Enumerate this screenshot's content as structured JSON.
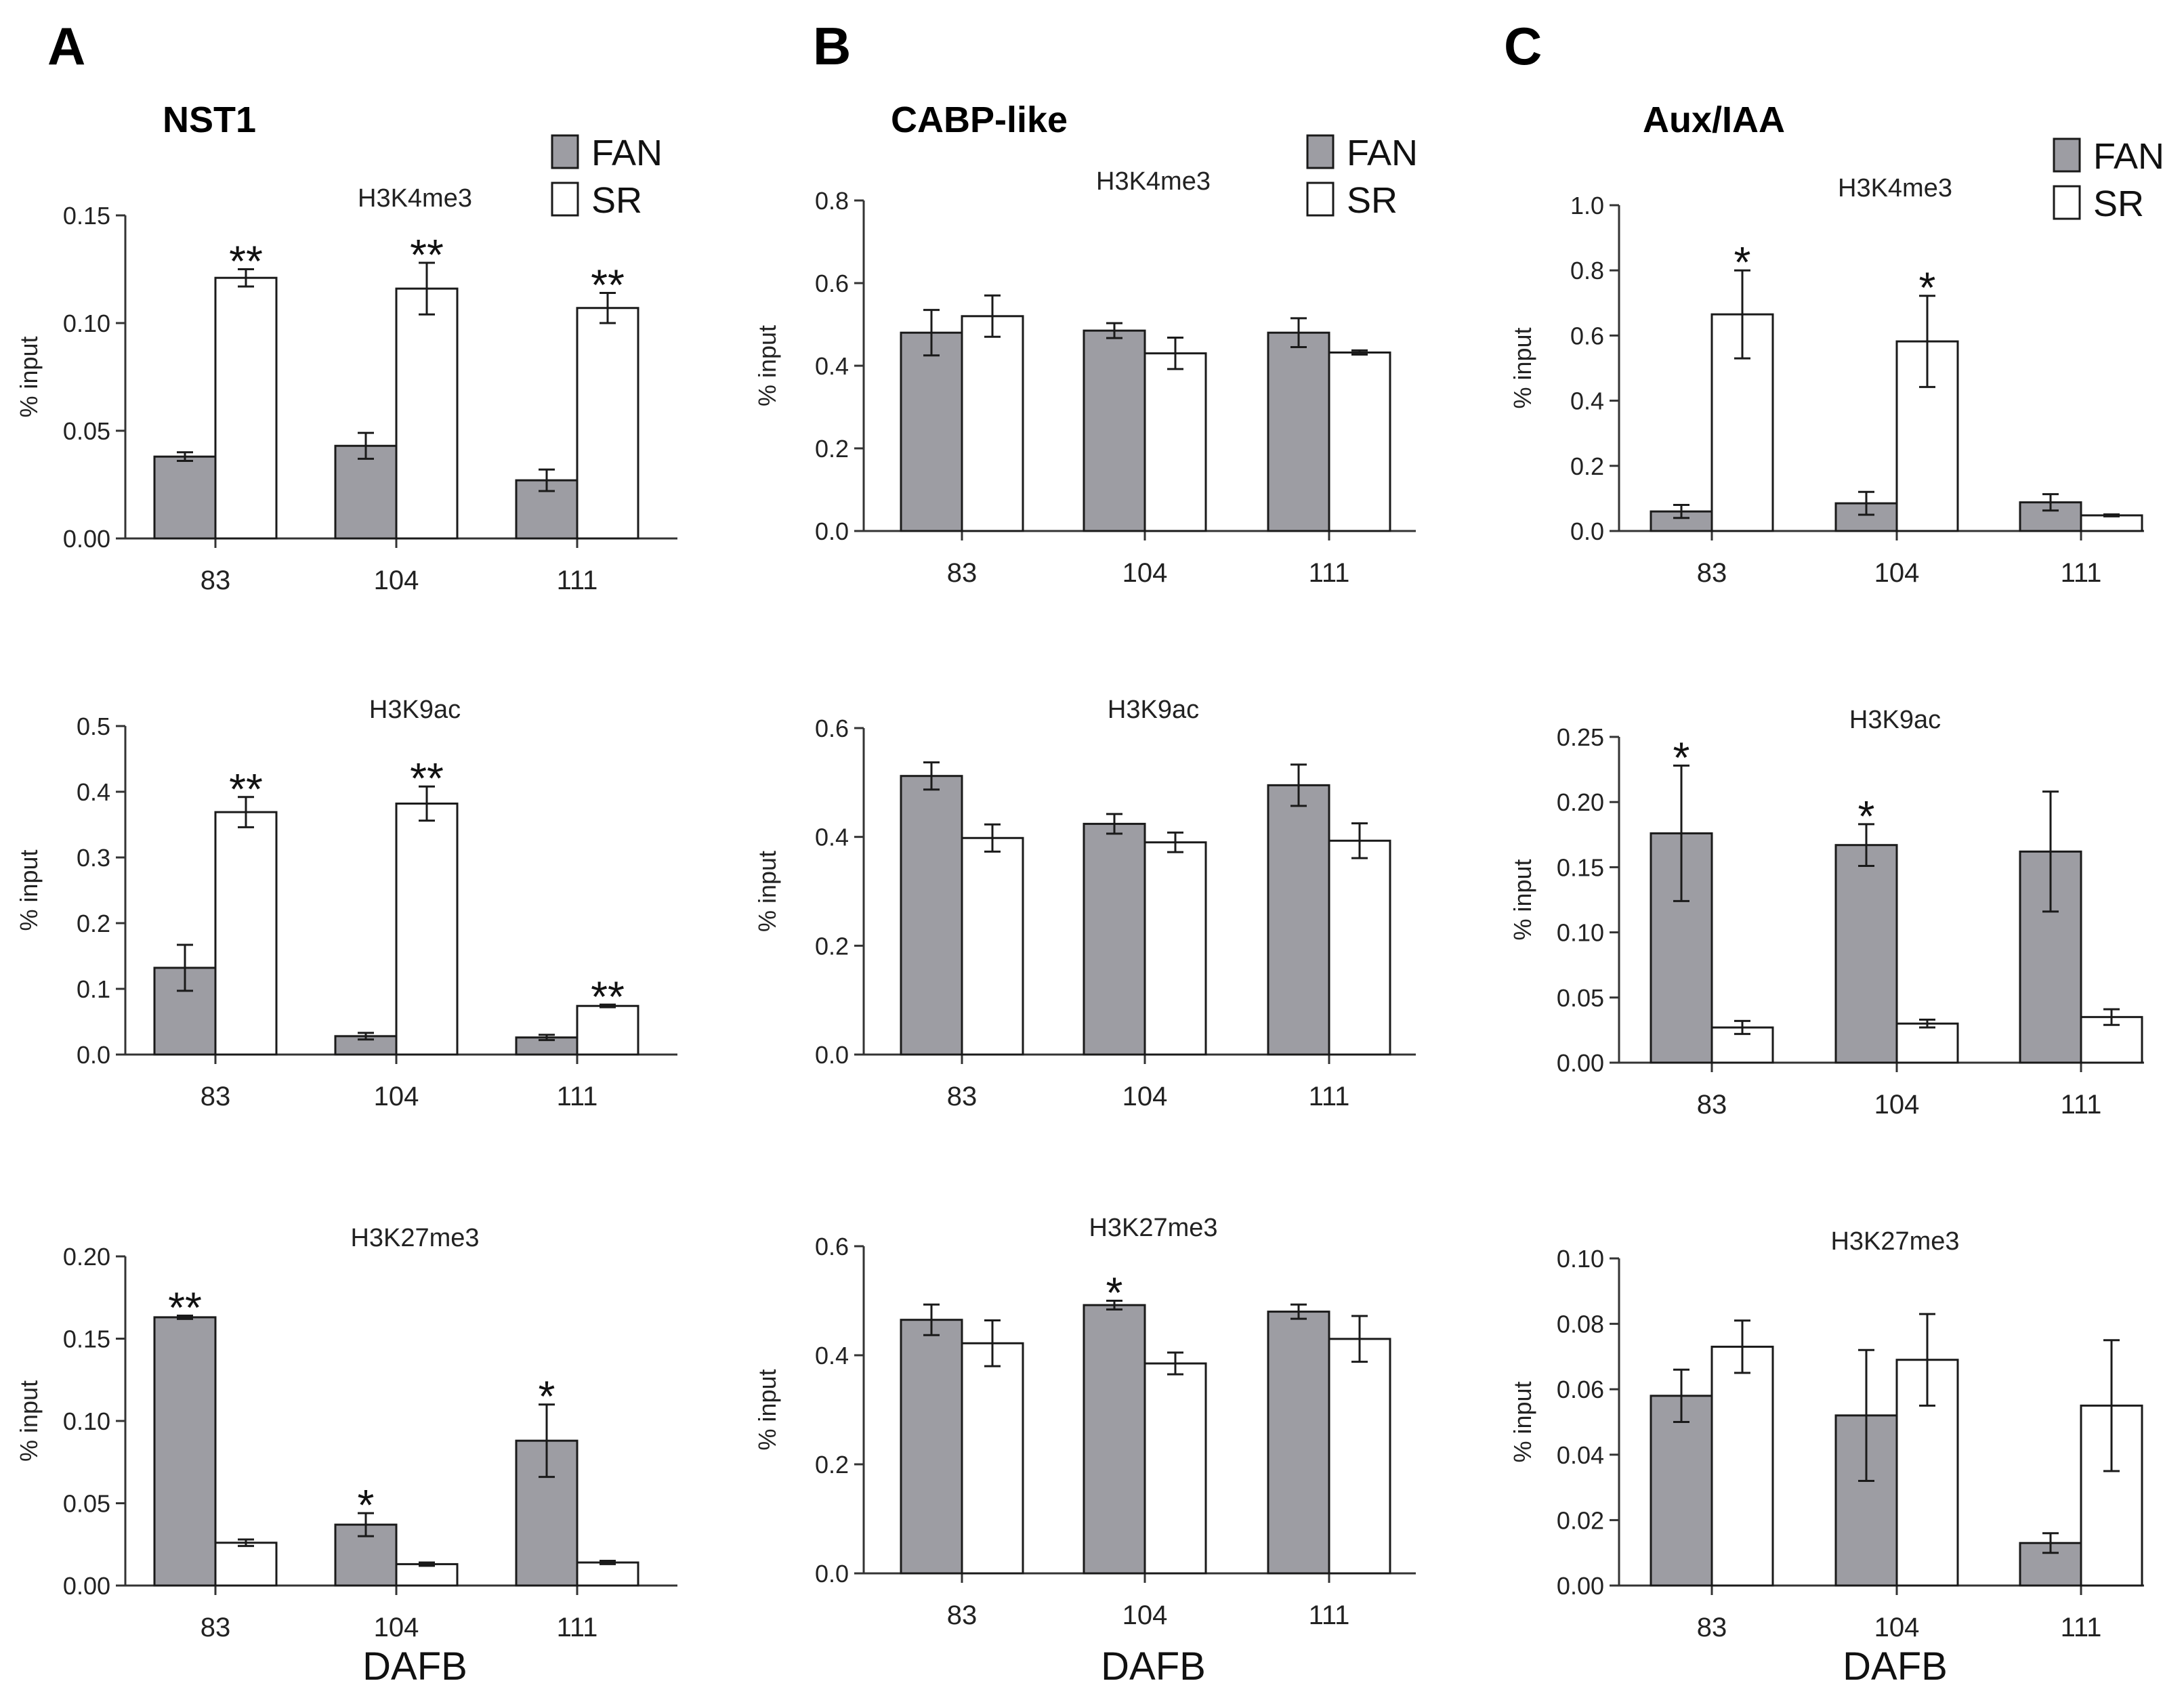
{
  "figure": {
    "xlabel": "DAFB",
    "colors": {
      "fan": "#9d9da3",
      "sr": "#ffffff",
      "stroke": "#1a1a1a"
    },
    "panels": [
      {
        "letter": "A",
        "gene": "NST1"
      },
      {
        "letter": "B",
        "gene": "CABP-like"
      },
      {
        "letter": "C",
        "gene": "Aux/IAA"
      }
    ],
    "legend": [
      "FAN",
      "SR"
    ]
  },
  "chart_data": [
    {
      "type": "bar",
      "panel": "A",
      "gene": "NST1",
      "title": "H3K4me3",
      "ylabel": "% input",
      "xlabel": "",
      "ylim": [
        0,
        0.15
      ],
      "yticks": [
        "0.00",
        "0.05",
        "0.10",
        "0.15"
      ],
      "categories": [
        "83",
        "104",
        "111"
      ],
      "series": [
        {
          "name": "FAN",
          "values": [
            0.038,
            0.043,
            0.027
          ],
          "errors": [
            0.002,
            0.006,
            0.005
          ]
        },
        {
          "name": "SR",
          "values": [
            0.121,
            0.116,
            0.107
          ],
          "errors": [
            0.004,
            0.012,
            0.007
          ]
        }
      ],
      "annotations": [
        {
          "series": "SR",
          "category": "83",
          "text": "**"
        },
        {
          "series": "SR",
          "category": "104",
          "text": "**"
        },
        {
          "series": "SR",
          "category": "111",
          "text": "**"
        }
      ]
    },
    {
      "type": "bar",
      "panel": "A",
      "gene": "NST1",
      "title": "H3K9ac",
      "ylabel": "% input",
      "xlabel": "",
      "ylim": [
        0,
        0.5
      ],
      "yticks": [
        "0.0",
        "0.1",
        "0.2",
        "0.3",
        "0.4",
        "0.5"
      ],
      "categories": [
        "83",
        "104",
        "111"
      ],
      "series": [
        {
          "name": "FAN",
          "values": [
            0.132,
            0.028,
            0.026
          ],
          "errors": [
            0.035,
            0.005,
            0.004
          ]
        },
        {
          "name": "SR",
          "values": [
            0.369,
            0.382,
            0.074
          ],
          "errors": [
            0.023,
            0.026,
            0.002
          ]
        }
      ],
      "annotations": [
        {
          "series": "SR",
          "category": "83",
          "text": "**"
        },
        {
          "series": "SR",
          "category": "104",
          "text": "**"
        },
        {
          "series": "SR",
          "category": "111",
          "text": "**"
        }
      ]
    },
    {
      "type": "bar",
      "panel": "A",
      "gene": "NST1",
      "title": "H3K27me3",
      "ylabel": "% input",
      "xlabel": "DAFB",
      "ylim": [
        0,
        0.2
      ],
      "yticks": [
        "0.00",
        "0.05",
        "0.10",
        "0.15",
        "0.20"
      ],
      "categories": [
        "83",
        "104",
        "111"
      ],
      "series": [
        {
          "name": "FAN",
          "values": [
            0.163,
            0.037,
            0.088
          ],
          "errors": [
            0.001,
            0.007,
            0.022
          ]
        },
        {
          "name": "SR",
          "values": [
            0.026,
            0.013,
            0.014
          ],
          "errors": [
            0.002,
            0.001,
            0.001
          ]
        }
      ],
      "annotations": [
        {
          "series": "FAN",
          "category": "83",
          "text": "**"
        },
        {
          "series": "FAN",
          "category": "104",
          "text": "*"
        },
        {
          "series": "FAN",
          "category": "111",
          "text": "*"
        }
      ]
    },
    {
      "type": "bar",
      "panel": "B",
      "gene": "CABP-like",
      "title": "H3K4me3",
      "ylabel": "% input",
      "xlabel": "",
      "ylim": [
        0,
        0.8
      ],
      "yticks": [
        "0.0",
        "0.2",
        "0.4",
        "0.6",
        "0.8"
      ],
      "categories": [
        "83",
        "104",
        "111"
      ],
      "series": [
        {
          "name": "FAN",
          "values": [
            0.48,
            0.485,
            0.48
          ],
          "errors": [
            0.055,
            0.018,
            0.035
          ]
        },
        {
          "name": "SR",
          "values": [
            0.52,
            0.43,
            0.432
          ],
          "errors": [
            0.05,
            0.038,
            0.005
          ]
        }
      ],
      "annotations": []
    },
    {
      "type": "bar",
      "panel": "B",
      "gene": "CABP-like",
      "title": "H3K9ac",
      "ylabel": "% input",
      "xlabel": "",
      "ylim": [
        0,
        0.6
      ],
      "yticks": [
        "0.0",
        "0.2",
        "0.4",
        "0.6"
      ],
      "categories": [
        "83",
        "104",
        "111"
      ],
      "series": [
        {
          "name": "FAN",
          "values": [
            0.512,
            0.424,
            0.495
          ],
          "errors": [
            0.025,
            0.018,
            0.038
          ]
        },
        {
          "name": "SR",
          "values": [
            0.398,
            0.39,
            0.393
          ],
          "errors": [
            0.025,
            0.018,
            0.032
          ]
        }
      ],
      "annotations": []
    },
    {
      "type": "bar",
      "panel": "B",
      "gene": "CABP-like",
      "title": "H3K27me3",
      "ylabel": "% input",
      "xlabel": "DAFB",
      "ylim": [
        0,
        0.6
      ],
      "yticks": [
        "0.0",
        "0.2",
        "0.4",
        "0.6"
      ],
      "categories": [
        "83",
        "104",
        "111"
      ],
      "series": [
        {
          "name": "FAN",
          "values": [
            0.465,
            0.492,
            0.48
          ],
          "errors": [
            0.028,
            0.008,
            0.013
          ]
        },
        {
          "name": "SR",
          "values": [
            0.422,
            0.385,
            0.43
          ],
          "errors": [
            0.042,
            0.02,
            0.042
          ]
        }
      ],
      "annotations": [
        {
          "series": "FAN",
          "category": "104",
          "text": "*"
        }
      ]
    },
    {
      "type": "bar",
      "panel": "C",
      "gene": "Aux/IAA",
      "title": "H3K4me3",
      "ylabel": "% input",
      "xlabel": "",
      "ylim": [
        0,
        1.0
      ],
      "yticks": [
        "0.0",
        "0.2",
        "0.4",
        "0.6",
        "0.8",
        "1.0"
      ],
      "categories": [
        "83",
        "104",
        "111"
      ],
      "series": [
        {
          "name": "FAN",
          "values": [
            0.06,
            0.085,
            0.088
          ],
          "errors": [
            0.02,
            0.035,
            0.025
          ]
        },
        {
          "name": "SR",
          "values": [
            0.665,
            0.582,
            0.048
          ],
          "errors": [
            0.135,
            0.14,
            0.003
          ]
        }
      ],
      "annotations": [
        {
          "series": "SR",
          "category": "83",
          "text": "*"
        },
        {
          "series": "SR",
          "category": "104",
          "text": "*"
        }
      ]
    },
    {
      "type": "bar",
      "panel": "C",
      "gene": "Aux/IAA",
      "title": "H3K9ac",
      "ylabel": "% input",
      "xlabel": "",
      "ylim": [
        0,
        0.25
      ],
      "yticks": [
        "0.00",
        "0.05",
        "0.10",
        "0.15",
        "0.20",
        "0.25"
      ],
      "categories": [
        "83",
        "104",
        "111"
      ],
      "series": [
        {
          "name": "FAN",
          "values": [
            0.176,
            0.167,
            0.162
          ],
          "errors": [
            0.052,
            0.016,
            0.046
          ]
        },
        {
          "name": "SR",
          "values": [
            0.027,
            0.03,
            0.035
          ],
          "errors": [
            0.005,
            0.003,
            0.006
          ]
        }
      ],
      "annotations": [
        {
          "series": "FAN",
          "category": "83",
          "text": "*"
        },
        {
          "series": "FAN",
          "category": "104",
          "text": "*"
        }
      ]
    },
    {
      "type": "bar",
      "panel": "C",
      "gene": "Aux/IAA",
      "title": "H3K27me3",
      "ylabel": "% input",
      "xlabel": "DAFB",
      "ylim": [
        0,
        0.1
      ],
      "yticks": [
        "0.00",
        "0.02",
        "0.04",
        "0.06",
        "0.08",
        "0.10"
      ],
      "categories": [
        "83",
        "104",
        "111"
      ],
      "series": [
        {
          "name": "FAN",
          "values": [
            0.058,
            0.052,
            0.013
          ],
          "errors": [
            0.008,
            0.02,
            0.003
          ]
        },
        {
          "name": "SR",
          "values": [
            0.073,
            0.069,
            0.055
          ],
          "errors": [
            0.008,
            0.014,
            0.02
          ]
        }
      ],
      "annotations": []
    }
  ]
}
